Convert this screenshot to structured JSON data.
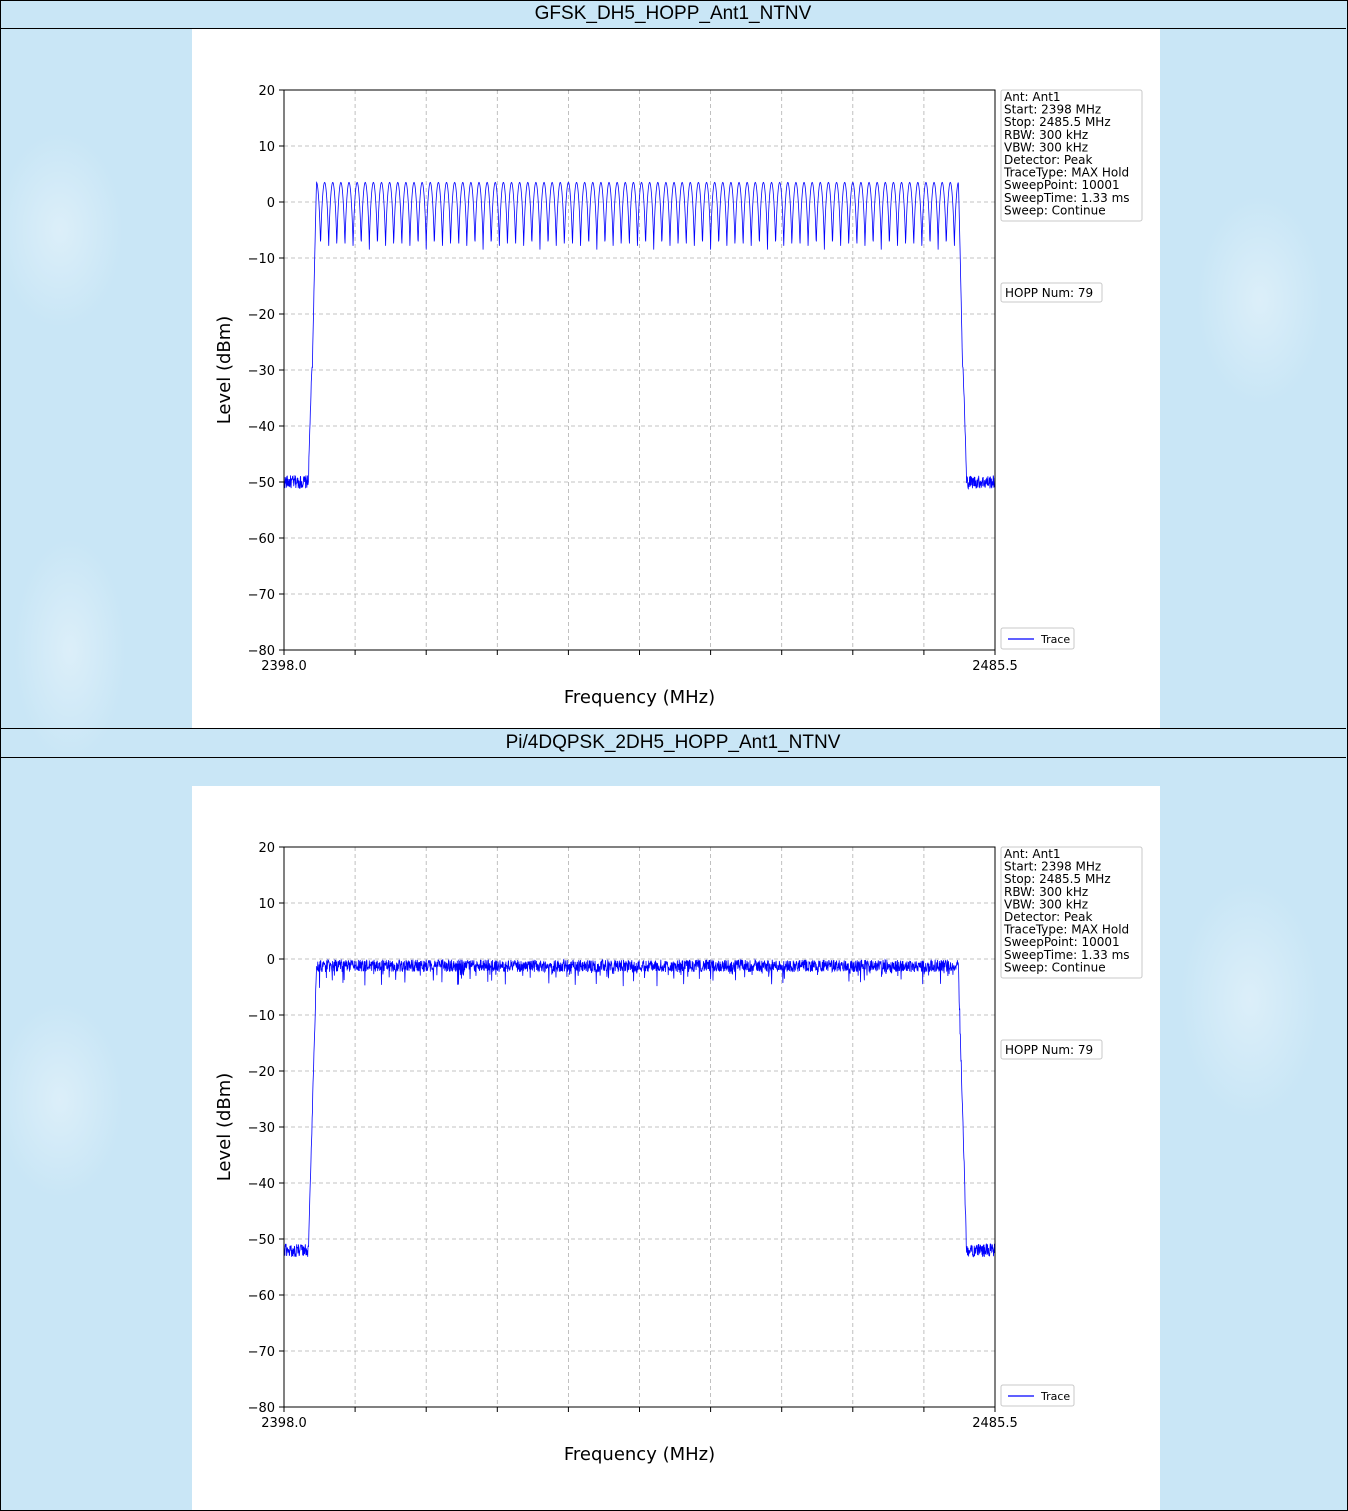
{
  "sections": [
    {
      "title": "GFSK_DH5_HOPP_Ant1_NTNV",
      "chart_data": {
        "type": "line",
        "xlabel": "Frequency (MHz)",
        "ylabel": "Level (dBm)",
        "xlim": [
          2398.0,
          2485.5
        ],
        "ylim": [
          -80,
          20
        ],
        "x_tick_labels": [
          "2398.0",
          "2485.5"
        ],
        "y_ticks": [
          20,
          10,
          0,
          -10,
          -20,
          -30,
          -40,
          -50,
          -60,
          -70,
          -80
        ],
        "grid": true,
        "legend": "lower-right",
        "info_box": [
          "Ant: Ant1",
          "Start: 2398 MHz",
          "Stop: 2485.5 MHz",
          "RBW: 300 kHz",
          "VBW: 300 kHz",
          "Detector: Peak",
          "TraceType: MAX Hold",
          "SweepPoint: 10001",
          "SweepTime: 1.33 ms",
          "Sweep: Continue"
        ],
        "hopp_label": "HOPP Num: 79",
        "series": [
          {
            "name": "Trace",
            "color": "#0000ff",
            "pattern": "hopping_channels",
            "channels": 79,
            "first_channel_mhz": 2402,
            "channel_spacing_mhz": 1,
            "peak_dbm": 3.5,
            "valley_dbm": -8.5,
            "noise_floor_dbm": -50,
            "edge_low_mhz": [
              2401.0,
              2402.0
            ],
            "edge_high_mhz": [
              2481.0,
              2482.0
            ]
          }
        ]
      }
    },
    {
      "title": "Pi/4DQPSK_2DH5_HOPP_Ant1_NTNV",
      "chart_data": {
        "type": "line",
        "xlabel": "Frequency (MHz)",
        "ylabel": "Level (dBm)",
        "xlim": [
          2398.0,
          2485.5
        ],
        "ylim": [
          -80,
          20
        ],
        "x_tick_labels": [
          "2398.0",
          "2485.5"
        ],
        "y_ticks": [
          20,
          10,
          0,
          -10,
          -20,
          -30,
          -40,
          -50,
          -60,
          -70,
          -80
        ],
        "grid": true,
        "legend": "lower-right",
        "info_box": [
          "Ant: Ant1",
          "Start: 2398 MHz",
          "Stop: 2485.5 MHz",
          "RBW: 300 kHz",
          "VBW: 300 kHz",
          "Detector: Peak",
          "TraceType: MAX Hold",
          "SweepPoint: 10001",
          "SweepTime: 1.33 ms",
          "Sweep: Continue"
        ],
        "hopp_label": "HOPP Num: 79",
        "series": [
          {
            "name": "Trace",
            "color": "#0000ff",
            "pattern": "flat_noisy",
            "plateau_dbm": -1,
            "noise_floor_dbm": -52,
            "edge_low_mhz": [
              2401.0,
              2402.0
            ],
            "edge_high_mhz": [
              2481.0,
              2482.0
            ]
          }
        ]
      }
    }
  ]
}
